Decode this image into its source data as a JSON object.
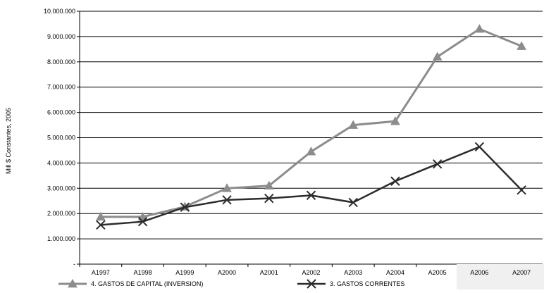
{
  "chart_data": {
    "type": "line",
    "ylabel": "Mill $ Constantes, 2005",
    "xlabel": "",
    "title": "",
    "categories": [
      "A1997",
      "A1998",
      "A1999",
      "A2000",
      "A2001",
      "A2002",
      "A2003",
      "A2004",
      "A2005",
      "A2006",
      "A2007"
    ],
    "ylim": [
      0,
      10000000
    ],
    "ytick_labels": [
      "-",
      "1.000.000",
      "2.000.000",
      "3.000.000",
      "4.000.000",
      "5.000.000",
      "6.000.000",
      "7.000.000",
      "8.000.000",
      "9.000.000",
      "10.000.000"
    ],
    "grid": true,
    "legend_position": "bottom",
    "series": [
      {
        "name": "4.  GASTOS DE CAPITAL (INVERSION)",
        "marker": "triangle",
        "color": "#8c8c8c",
        "values": [
          1870000,
          1870000,
          2270000,
          3000000,
          3100000,
          4450000,
          5500000,
          5650000,
          8200000,
          9300000,
          8620000
        ]
      },
      {
        "name": "3.  GASTOS CORRENTES",
        "marker": "x",
        "color": "#2b2b2b",
        "values": [
          1550000,
          1680000,
          2250000,
          2540000,
          2600000,
          2720000,
          2440000,
          3280000,
          3960000,
          4640000,
          2930000
        ]
      }
    ]
  }
}
